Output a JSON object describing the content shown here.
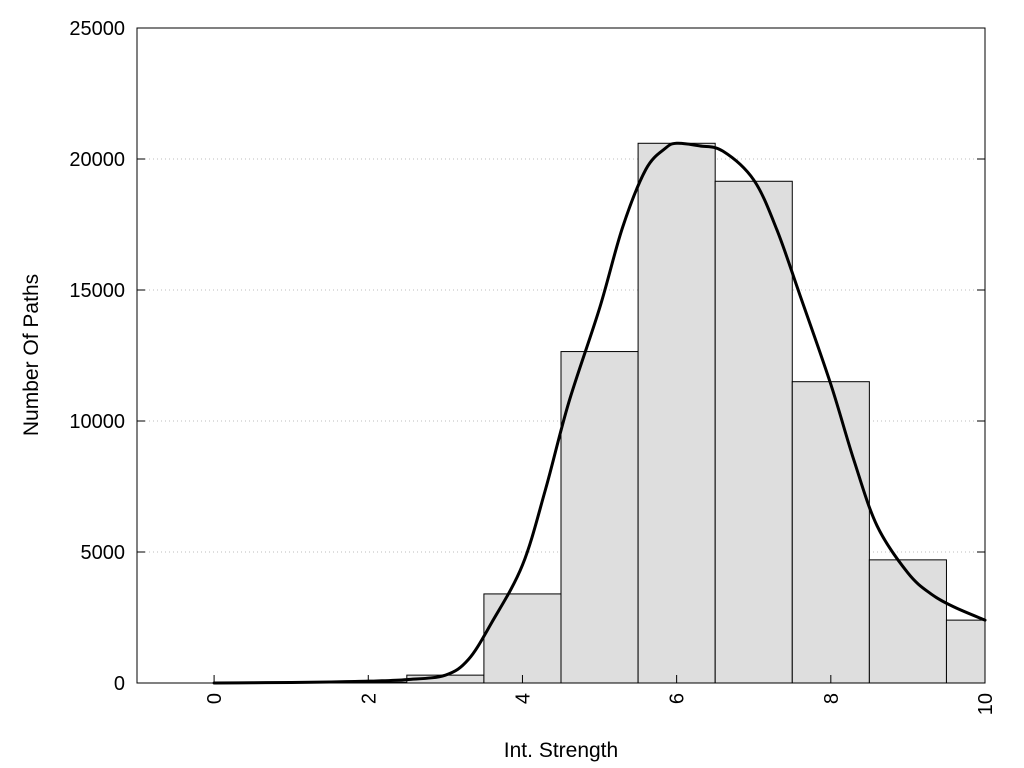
{
  "chart_data": {
    "type": "bar",
    "xlabel": "Int. Strength",
    "ylabel": "Number Of Paths",
    "xlim": [
      -1,
      10
    ],
    "ylim": [
      0,
      25000
    ],
    "grid": true,
    "x_ticks": [
      "0",
      "2",
      "4",
      "6",
      "8",
      "10"
    ],
    "y_ticks": [
      "0",
      "5000",
      "10000",
      "15000",
      "20000",
      "25000"
    ],
    "bars": {
      "x": [
        0,
        1,
        2,
        3,
        4,
        5,
        6,
        7,
        8,
        9,
        10
      ],
      "values": [
        0,
        0,
        30,
        300,
        3400,
        12650,
        20600,
        19150,
        11500,
        4700,
        2400
      ]
    },
    "curve": {
      "x": [
        0,
        0.5,
        1,
        1.5,
        2,
        2.5,
        3,
        3.3,
        3.6,
        4,
        4.3,
        4.6,
        5,
        5.3,
        5.6,
        5.85,
        6,
        6.3,
        6.6,
        7,
        7.3,
        7.6,
        8,
        8.3,
        8.6,
        9,
        9.3,
        9.6,
        10
      ],
      "values": [
        0,
        10,
        20,
        40,
        70,
        130,
        300,
        900,
        2300,
        4500,
        7400,
        10700,
        14300,
        17400,
        19600,
        20400,
        20600,
        20500,
        20300,
        19200,
        17300,
        14800,
        11400,
        8500,
        6000,
        4200,
        3400,
        2900,
        2400
      ]
    },
    "colors": {
      "bar_fill": "#dedede",
      "bar_stroke": "#000000",
      "curve": "#000000"
    }
  }
}
